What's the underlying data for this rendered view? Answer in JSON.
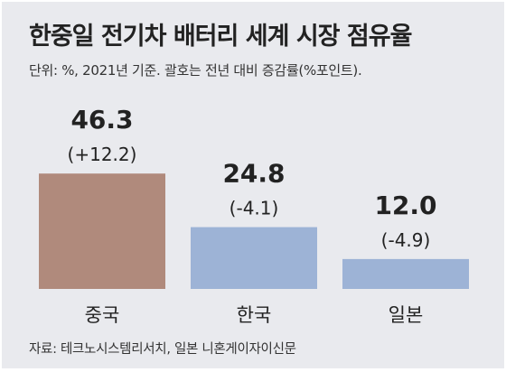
{
  "colors": {
    "background": "#e9eaee",
    "china_bar": "#b08a7c",
    "other_bar": "#9db3d6",
    "text": "#222222"
  },
  "chart_data": {
    "type": "bar",
    "title": "한중일 전기차 배터리 세계 시장 점유율",
    "subtitle": "단위: %, 2021년 기준. 괄호는 전년 대비 증감률(%포인트).",
    "source": "자료: 테크노시스템리서치, 일본 니혼게이자이신문",
    "categories": [
      "중국",
      "한국",
      "일본"
    ],
    "values": [
      46.3,
      24.8,
      12.0
    ],
    "value_labels": [
      "46.3",
      "24.8",
      "12.0"
    ],
    "change_labels": [
      "(+12.2)",
      "(-4.1)",
      "(-4.9)"
    ],
    "ylim": [
      0,
      50
    ]
  }
}
